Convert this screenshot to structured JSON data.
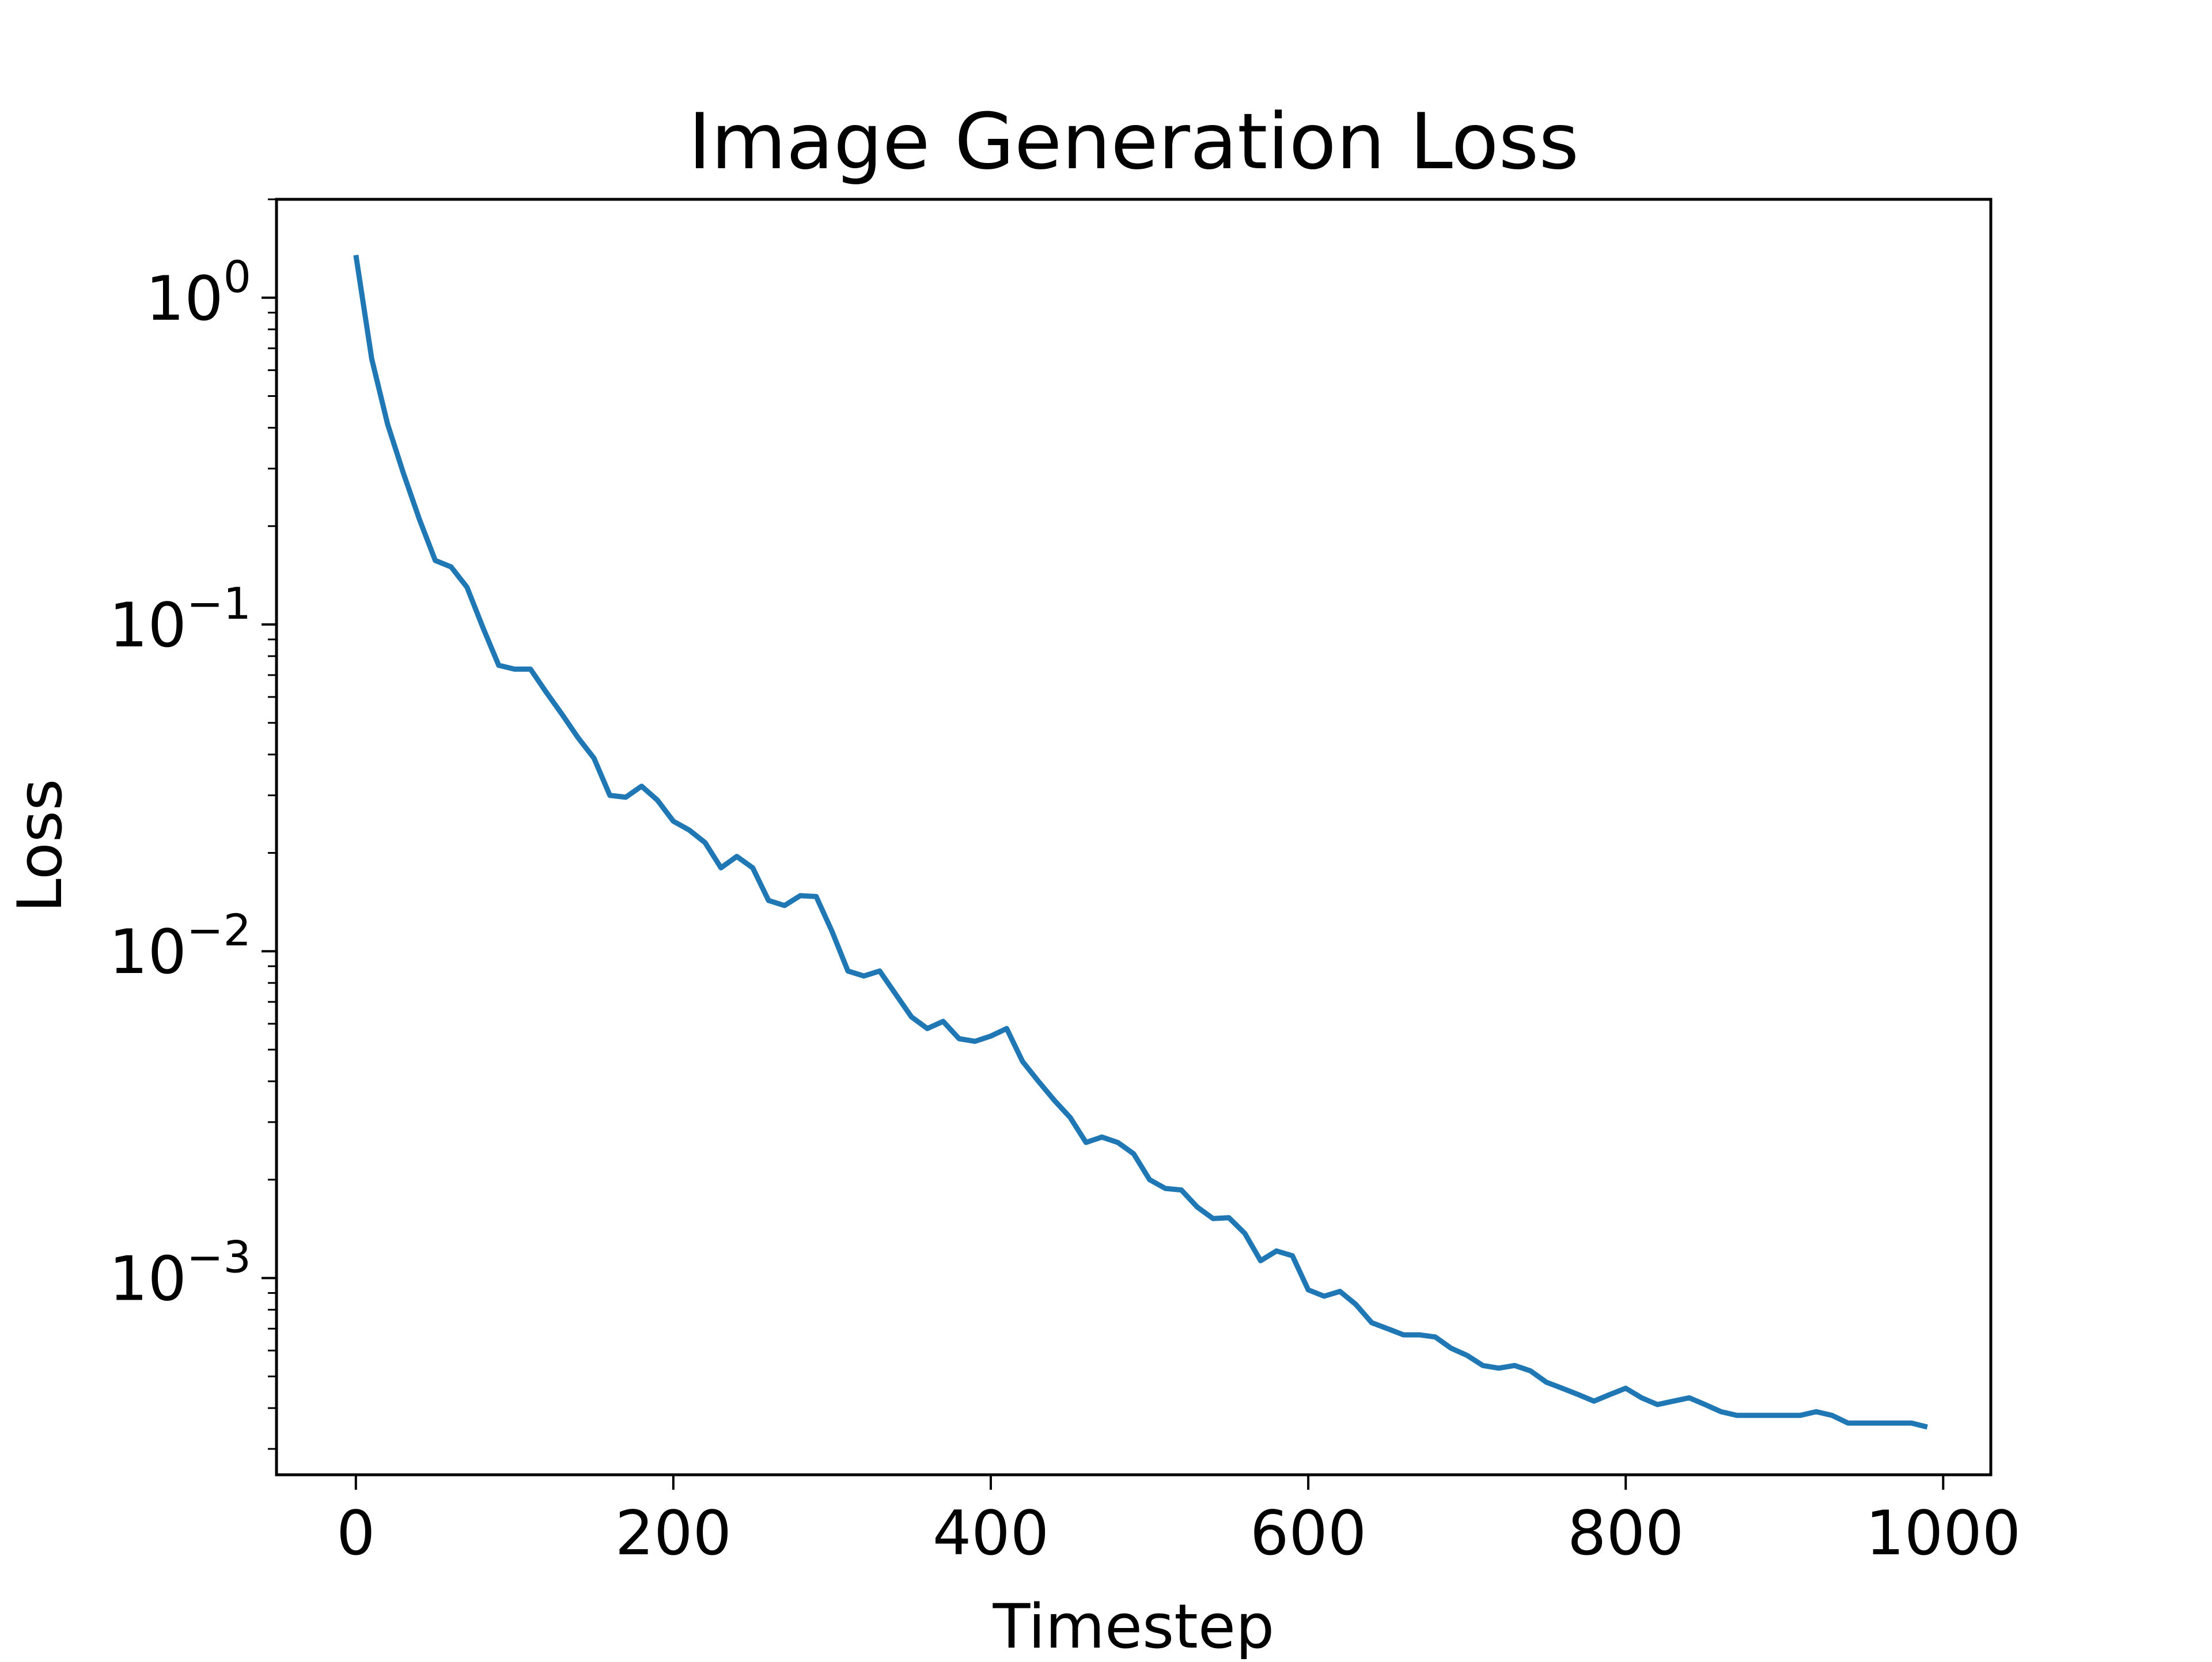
{
  "chart_data": {
    "type": "line",
    "title": "Image Generation Loss",
    "xlabel": "Timestep",
    "ylabel": "Loss",
    "xlim": [
      -50,
      1030
    ],
    "ylim": [
      0.00025,
      2.0
    ],
    "yscale": "log",
    "grid": false,
    "legend": "none",
    "x_ticks": [
      {
        "value": 0,
        "label": "0"
      },
      {
        "value": 200,
        "label": "200"
      },
      {
        "value": 400,
        "label": "400"
      },
      {
        "value": 600,
        "label": "600"
      },
      {
        "value": 800,
        "label": "800"
      },
      {
        "value": 1000,
        "label": "1000"
      }
    ],
    "y_ticks": [
      {
        "value": 1,
        "base": "10",
        "exponent": "0"
      },
      {
        "value": 0.1,
        "base": "10",
        "exponent": "−1"
      },
      {
        "value": 0.01,
        "base": "10",
        "exponent": "−2"
      },
      {
        "value": 0.001,
        "base": "10",
        "exponent": "−3"
      }
    ],
    "series": [
      {
        "color": "#1f77b4",
        "x": [
          0,
          10,
          20,
          30,
          40,
          50,
          60,
          70,
          80,
          90,
          100,
          110,
          120,
          130,
          140,
          150,
          160,
          170,
          180,
          190,
          200,
          210,
          220,
          230,
          240,
          250,
          260,
          270,
          280,
          290,
          300,
          310,
          320,
          330,
          340,
          350,
          360,
          370,
          380,
          390,
          400,
          410,
          420,
          430,
          440,
          450,
          460,
          470,
          480,
          490,
          500,
          510,
          520,
          530,
          540,
          550,
          560,
          570,
          580,
          590,
          600,
          610,
          620,
          630,
          640,
          650,
          660,
          670,
          680,
          690,
          700,
          710,
          720,
          730,
          740,
          750,
          760,
          770,
          780,
          790,
          800,
          810,
          820,
          830,
          840,
          850,
          860,
          870,
          880,
          890,
          900,
          910,
          920,
          930,
          940,
          950,
          960,
          970,
          980,
          990
        ],
        "values": [
          1.35,
          0.65,
          0.41,
          0.29,
          0.21,
          0.157,
          0.15,
          0.13,
          0.098,
          0.075,
          0.073,
          0.073,
          0.062,
          0.053,
          0.045,
          0.039,
          0.03,
          0.0296,
          0.032,
          0.029,
          0.025,
          0.0235,
          0.0215,
          0.018,
          0.0195,
          0.018,
          0.0143,
          0.0138,
          0.0148,
          0.0147,
          0.0115,
          0.0087,
          0.0084,
          0.0087,
          0.0074,
          0.0063,
          0.0058,
          0.0061,
          0.0054,
          0.0053,
          0.0055,
          0.0058,
          0.0046,
          0.004,
          0.0035,
          0.0031,
          0.0026,
          0.0027,
          0.0026,
          0.0024,
          0.002,
          0.00188,
          0.00186,
          0.00165,
          0.00152,
          0.00153,
          0.00137,
          0.00113,
          0.00121,
          0.00117,
          0.00092,
          0.00088,
          0.00091,
          0.00083,
          0.00073,
          0.0007,
          0.00067,
          0.00067,
          0.00066,
          0.00061,
          0.00058,
          0.00054,
          0.00053,
          0.00054,
          0.00052,
          0.00048,
          0.00046,
          0.00044,
          0.00042,
          0.00044,
          0.00046,
          0.00043,
          0.00041,
          0.00042,
          0.00043,
          0.00041,
          0.00039,
          0.00038,
          0.00038,
          0.00038,
          0.00038,
          0.00038,
          0.00039,
          0.00038,
          0.00036,
          0.00036,
          0.00036,
          0.00036,
          0.00036,
          0.00035
        ]
      }
    ]
  }
}
